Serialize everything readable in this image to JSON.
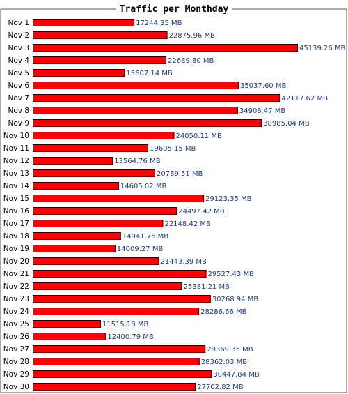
{
  "colors": {
    "bar_fill": "#ff0000",
    "bar_stroke": "#000000",
    "value_text": "#1e3a8a",
    "frame": "#555555",
    "background": "#ffffff"
  },
  "chart_data": {
    "type": "bar",
    "orientation": "horizontal",
    "title": "Traffic per Monthday",
    "unit": "MB",
    "xlim": [
      0,
      45139.26
    ],
    "grid": false,
    "categories": [
      "Nov 1",
      "Nov 2",
      "Nov 3",
      "Nov 4",
      "Nov 5",
      "Nov 6",
      "Nov 7",
      "Nov 8",
      "Nov 9",
      "Nov 10",
      "Nov 11",
      "Nov 12",
      "Nov 13",
      "Nov 14",
      "Nov 15",
      "Nov 16",
      "Nov 17",
      "Nov 18",
      "Nov 19",
      "Nov 20",
      "Nov 21",
      "Nov 22",
      "Nov 23",
      "Nov 24",
      "Nov 25",
      "Nov 26",
      "Nov 27",
      "Nov 28",
      "Nov 29",
      "Nov 30"
    ],
    "values": [
      17244.35,
      22875.96,
      45139.26,
      22689.8,
      15607.14,
      35037.6,
      42117.62,
      34908.47,
      38985.04,
      24050.11,
      19605.15,
      13564.76,
      20789.51,
      14605.02,
      29123.35,
      24497.42,
      22148.42,
      14941.76,
      14009.27,
      21443.39,
      29527.43,
      25381.21,
      30268.94,
      28286.66,
      11515.18,
      12400.79,
      29369.35,
      28362.03,
      30447.84,
      27702.82
    ],
    "value_labels": [
      "17244.35 MB",
      "22875.96 MB",
      "45139.26 MB",
      "22689.80 MB",
      "15607.14 MB",
      "35037.60 MB",
      "42117.62 MB",
      "34908.47 MB",
      "38985.04 MB",
      "24050.11 MB",
      "19605.15 MB",
      "13564.76 MB",
      "20789.51 MB",
      "14605.02 MB",
      "29123.35 MB",
      "24497.42 MB",
      "22148.42 MB",
      "14941.76 MB",
      "14009.27 MB",
      "21443.39 MB",
      "29527.43 MB",
      "25381.21 MB",
      "30268.94 MB",
      "28286.66 MB",
      "11515.18 MB",
      "12400.79 MB",
      "29369.35 MB",
      "28362.03 MB",
      "30447.84 MB",
      "27702.82 MB"
    ]
  }
}
